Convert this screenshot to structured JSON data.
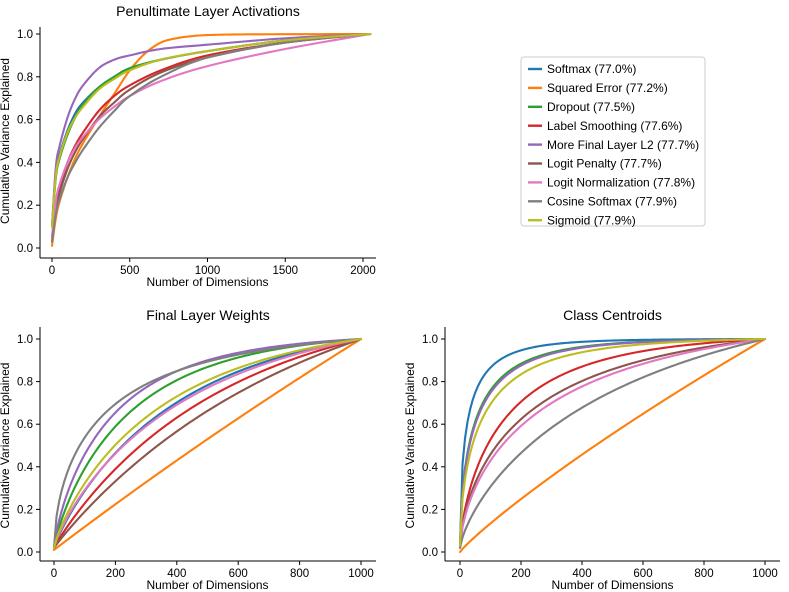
{
  "chart_data": [
    {
      "type": "line",
      "title": "Penultimate Layer Activations",
      "xlabel": "Number of Dimensions",
      "ylabel": "Cumulative Variance Explained",
      "xlim": [
        -100,
        2140
      ],
      "ylim": [
        -0.05,
        1.05
      ],
      "xticks": [
        0,
        500,
        1000,
        1500,
        2000
      ],
      "yticks": [
        0.0,
        0.2,
        0.4,
        0.6,
        0.8,
        1.0
      ],
      "x_max": 2048,
      "series": [
        {
          "name": "Softmax (77.0%)",
          "color": "#1f77b4",
          "start": 0.1,
          "x": [
            0,
            25,
            50,
            100,
            150,
            200,
            300,
            400,
            500,
            700,
            1000,
            1500,
            2048
          ],
          "y": [
            0.1,
            0.36,
            0.44,
            0.55,
            0.63,
            0.68,
            0.75,
            0.8,
            0.84,
            0.88,
            0.92,
            0.97,
            1.0
          ]
        },
        {
          "name": "Squared Error (77.2%)",
          "color": "#ff7f0e",
          "start": 0.01,
          "x": [
            0,
            25,
            50,
            100,
            150,
            200,
            300,
            400,
            500,
            600,
            700,
            800,
            900,
            1000,
            1200,
            1500,
            2048
          ],
          "y": [
            0.01,
            0.14,
            0.22,
            0.33,
            0.42,
            0.49,
            0.61,
            0.72,
            0.83,
            0.91,
            0.96,
            0.98,
            0.99,
            0.995,
            0.998,
            0.999,
            1.0
          ]
        },
        {
          "name": "Dropout (77.5%)",
          "color": "#2ca02c",
          "start": 0.1,
          "x": [
            0,
            25,
            50,
            100,
            150,
            200,
            300,
            400,
            500,
            700,
            1000,
            1500,
            2048
          ],
          "y": [
            0.1,
            0.33,
            0.42,
            0.53,
            0.61,
            0.67,
            0.75,
            0.8,
            0.84,
            0.88,
            0.92,
            0.97,
            1.0
          ]
        },
        {
          "name": "Label Smoothing (77.6%)",
          "color": "#d62728",
          "start": 0.05,
          "x": [
            0,
            25,
            50,
            100,
            150,
            200,
            300,
            400,
            500,
            700,
            1000,
            1500,
            2048
          ],
          "y": [
            0.05,
            0.2,
            0.28,
            0.4,
            0.48,
            0.54,
            0.64,
            0.71,
            0.76,
            0.83,
            0.9,
            0.96,
            1.0
          ]
        },
        {
          "name": "More Final Layer L2 (77.7%)",
          "color": "#9467bd",
          "start": 0.1,
          "x": [
            0,
            25,
            50,
            100,
            150,
            200,
            300,
            400,
            500,
            700,
            1000,
            1500,
            2048
          ],
          "y": [
            0.1,
            0.38,
            0.48,
            0.61,
            0.7,
            0.76,
            0.84,
            0.88,
            0.9,
            0.93,
            0.95,
            0.98,
            1.0
          ]
        },
        {
          "name": "Logit Penalty (77.7%)",
          "color": "#8c564b",
          "start": 0.03,
          "x": [
            0,
            25,
            50,
            100,
            150,
            200,
            300,
            400,
            500,
            700,
            1000,
            1500,
            2048
          ],
          "y": [
            0.03,
            0.18,
            0.26,
            0.37,
            0.45,
            0.51,
            0.61,
            0.68,
            0.74,
            0.82,
            0.89,
            0.96,
            1.0
          ]
        },
        {
          "name": "Logit Normalization (77.8%)",
          "color": "#e377c2",
          "start": 0.05,
          "x": [
            0,
            25,
            50,
            100,
            150,
            200,
            300,
            400,
            500,
            700,
            1000,
            1500,
            2048
          ],
          "y": [
            0.05,
            0.22,
            0.3,
            0.4,
            0.47,
            0.52,
            0.6,
            0.66,
            0.71,
            0.78,
            0.85,
            0.93,
            1.0
          ]
        },
        {
          "name": "Cosine Softmax (77.9%)",
          "color": "#7f7f7f",
          "start": 0.03,
          "x": [
            0,
            25,
            50,
            100,
            150,
            200,
            300,
            400,
            500,
            700,
            1000,
            1500,
            2048
          ],
          "y": [
            0.03,
            0.16,
            0.23,
            0.33,
            0.4,
            0.46,
            0.56,
            0.64,
            0.71,
            0.8,
            0.89,
            0.96,
            1.0
          ]
        },
        {
          "name": "Sigmoid (77.9%)",
          "color": "#bcbd22",
          "start": 0.1,
          "x": [
            0,
            25,
            50,
            100,
            150,
            200,
            300,
            400,
            500,
            700,
            1000,
            1500,
            2048
          ],
          "y": [
            0.1,
            0.34,
            0.43,
            0.54,
            0.61,
            0.66,
            0.74,
            0.79,
            0.83,
            0.88,
            0.92,
            0.97,
            1.0
          ]
        }
      ]
    },
    {
      "type": "line",
      "title": "Final Layer Weights",
      "xlabel": "Number of Dimensions",
      "ylabel": "Cumulative Variance Explained",
      "xlim": [
        -50,
        1050
      ],
      "ylim": [
        -0.05,
        1.05
      ],
      "xticks": [
        0,
        200,
        400,
        600,
        800,
        1000
      ],
      "yticks": [
        0.0,
        0.2,
        0.4,
        0.6,
        0.8,
        1.0
      ],
      "x_max": 1000,
      "series": [
        {
          "name": "Softmax (77.0%)",
          "color": "#1f77b4",
          "k": 2.2,
          "p": 0.9,
          "start": 0.02
        },
        {
          "name": "Squared Error (77.2%)",
          "color": "#ff7f0e",
          "k": 0.2,
          "p": 1.0,
          "start": 0.01
        },
        {
          "name": "Dropout (77.5%)",
          "color": "#2ca02c",
          "k": 3.2,
          "p": 0.85,
          "start": 0.02
        },
        {
          "name": "Label Smoothing (77.6%)",
          "color": "#d62728",
          "k": 1.7,
          "p": 0.95,
          "start": 0.02
        },
        {
          "name": "More Final Layer L2 (77.7%)",
          "color": "#9467bd",
          "k": 3.6,
          "p": 0.8,
          "start": 0.02
        },
        {
          "name": "Logit Penalty (77.7%)",
          "color": "#8c564b",
          "k": 1.2,
          "p": 0.97,
          "start": 0.02
        },
        {
          "name": "Logit Normalization (77.8%)",
          "color": "#e377c2",
          "k": 1.9,
          "p": 0.85,
          "start": 0.02
        },
        {
          "name": "Cosine Softmax (77.9%)",
          "color": "#7f7f7f",
          "k": 2.7,
          "p": 0.6,
          "start": 0.02
        },
        {
          "name": "Sigmoid (77.9%)",
          "color": "#bcbd22",
          "k": 2.3,
          "p": 0.85,
          "start": 0.02
        }
      ]
    },
    {
      "type": "line",
      "title": "Class Centroids",
      "xlabel": "Number of Dimensions",
      "ylabel": "Cumulative Variance Explained",
      "xlim": [
        -50,
        1050
      ],
      "ylim": [
        -0.05,
        1.05
      ],
      "xticks": [
        0,
        200,
        400,
        600,
        800,
        1000
      ],
      "yticks": [
        0.0,
        0.2,
        0.4,
        0.6,
        0.8,
        1.0
      ],
      "x_max": 1000,
      "series": [
        {
          "name": "Softmax (77.0%)",
          "color": "#1f77b4",
          "k": 7.0,
          "p": 0.55,
          "start": 0.03
        },
        {
          "name": "Squared Error (77.2%)",
          "color": "#ff7f0e",
          "k": 0.15,
          "p": 0.9,
          "start": 0.0
        },
        {
          "name": "Dropout (77.5%)",
          "color": "#2ca02c",
          "k": 5.5,
          "p": 0.6,
          "start": 0.03
        },
        {
          "name": "Label Smoothing (77.6%)",
          "color": "#d62728",
          "k": 3.5,
          "p": 0.7,
          "start": 0.02
        },
        {
          "name": "More Final Layer L2 (77.7%)",
          "color": "#9467bd",
          "k": 5.3,
          "p": 0.6,
          "start": 0.03
        },
        {
          "name": "Logit Penalty (77.7%)",
          "color": "#8c564b",
          "k": 2.3,
          "p": 0.65,
          "start": 0.02
        },
        {
          "name": "Logit Normalization (77.8%)",
          "color": "#e377c2",
          "k": 2.0,
          "p": 0.65,
          "start": 0.02
        },
        {
          "name": "Cosine Softmax (77.9%)",
          "color": "#7f7f7f",
          "k": 1.4,
          "p": 0.75,
          "start": 0.02
        },
        {
          "name": "Sigmoid (77.9%)",
          "color": "#bcbd22",
          "k": 4.5,
          "p": 0.6,
          "start": 0.03
        }
      ]
    }
  ],
  "legend": {
    "placement": "right of top panel",
    "entries": [
      {
        "label": "Softmax (77.0%)",
        "color": "#1f77b4"
      },
      {
        "label": "Squared Error (77.2%)",
        "color": "#ff7f0e"
      },
      {
        "label": "Dropout (77.5%)",
        "color": "#2ca02c"
      },
      {
        "label": "Label Smoothing (77.6%)",
        "color": "#d62728"
      },
      {
        "label": "More Final Layer L2 (77.7%)",
        "color": "#9467bd"
      },
      {
        "label": "Logit Penalty (77.7%)",
        "color": "#8c564b"
      },
      {
        "label": "Logit Normalization (77.8%)",
        "color": "#e377c2"
      },
      {
        "label": "Cosine Softmax (77.9%)",
        "color": "#7f7f7f"
      },
      {
        "label": "Sigmoid (77.9%)",
        "color": "#bcbd22"
      }
    ]
  }
}
